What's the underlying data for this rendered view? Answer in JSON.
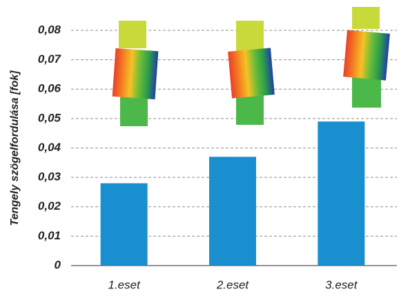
{
  "chart_data": {
    "type": "bar",
    "y_label": "Tengely szögelfordulása [fok]",
    "categories": [
      "1.eset",
      "2.eset",
      "3.eset"
    ],
    "values": [
      0.028,
      0.037,
      0.049
    ],
    "color": "#1a8fd0",
    "ylim": [
      0,
      0.08
    ],
    "yticks": [
      0,
      {
        "value": 0.01,
        "label": "0,01"
      },
      {
        "value": 0.02,
        "label": "0,02"
      },
      {
        "value": 0.03,
        "label": "0,03"
      },
      {
        "value": 0.04,
        "label": "0,04"
      },
      {
        "value": 0.05,
        "label": "0,05"
      },
      {
        "value": 0.06,
        "label": "0,06"
      },
      {
        "value": 0.07,
        "label": "0,07"
      },
      {
        "value": 0.08,
        "label": "0,08"
      }
    ],
    "grid": true
  }
}
